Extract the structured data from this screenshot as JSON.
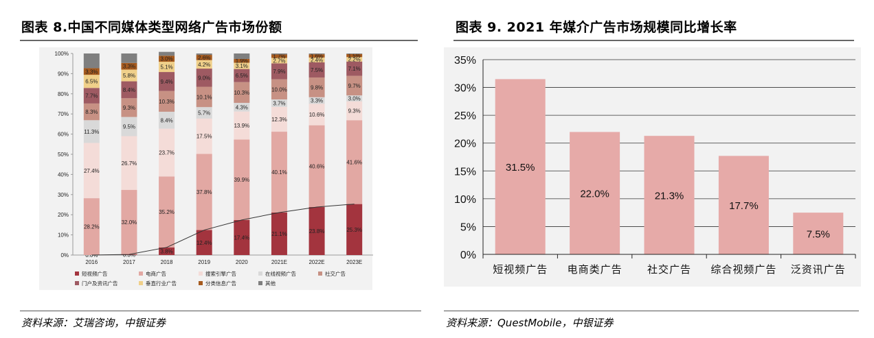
{
  "left": {
    "title": "图表 8.中国不同媒体类型网络广告市场份额",
    "source": "资料来源：艾瑞咨询，中银证券"
  },
  "right": {
    "title": "图表 9. 2021 年媒介广告市场规模同比增长率",
    "source": "资料来源：QuestMobile，中银证券"
  },
  "chart_data": [
    {
      "type": "bar",
      "stacked": true,
      "categories": [
        "2016",
        "2017",
        "2018",
        "2019",
        "2020",
        "2021E",
        "2022E",
        "2023E"
      ],
      "ylim": [
        0,
        100
      ],
      "yticks": [
        "0%",
        "10%",
        "20%",
        "30%",
        "40%",
        "50%",
        "60%",
        "70%",
        "80%",
        "90%",
        "100%"
      ],
      "series": [
        {
          "name": "短视频广告",
          "color": "#a3343e",
          "values": [
            0.0,
            0.3,
            3.8,
            12.4,
            17.4,
            21.1,
            23.8,
            25.3
          ],
          "labels": [
            "0.0%",
            "0.3%",
            "3.8%",
            "12.4%",
            "17.4%",
            "21.1%",
            "23.8%",
            "25.3%"
          ]
        },
        {
          "name": "电商广告",
          "color": "#e2a8a3",
          "values": [
            28.2,
            32.0,
            35.2,
            37.8,
            39.9,
            40.1,
            40.6,
            41.6
          ],
          "labels": [
            "28.2%",
            "32.0%",
            "35.2%",
            "37.8%",
            "39.9%",
            "40.1%",
            "40.6%",
            "41.6%"
          ]
        },
        {
          "name": "搜索引擎广告",
          "color": "#f4dcd8",
          "values": [
            27.4,
            26.7,
            23.7,
            17.5,
            13.9,
            12.3,
            10.6,
            9.3
          ],
          "labels": [
            "27.4%",
            "26.7%",
            "23.7%",
            "17.5%",
            "13.9%",
            "12.3%",
            "10.6%",
            "9.3%"
          ]
        },
        {
          "name": "在线视频广告",
          "color": "#d9d9d9",
          "values": [
            11.3,
            9.5,
            8.4,
            5.7,
            4.3,
            3.7,
            3.3,
            3.0
          ],
          "labels": [
            "11.3%",
            "9.5%",
            "8.4%",
            "5.7%",
            "4.3%",
            "3.7%",
            "3.3%",
            "3.0%"
          ]
        },
        {
          "name": "社交广告",
          "color": "#c79184",
          "values": [
            8.3,
            9.3,
            10.3,
            10.1,
            10.3,
            10.0,
            9.8,
            9.7
          ],
          "labels": [
            "8.3%",
            "9.3%",
            "10.3%",
            "10.1%",
            "10.3%",
            "10.0%",
            "9.8%",
            "9.7%"
          ]
        },
        {
          "name": "门户及资讯广告",
          "color": "#9e5a62",
          "values": [
            7.7,
            8.4,
            9.4,
            9.0,
            6.5,
            7.9,
            7.5,
            7.1
          ],
          "labels": [
            "7.7%",
            "8.4%",
            "9.4%",
            "9.0%",
            "6.5%",
            "7.9%",
            "7.5%",
            "7.1%"
          ]
        },
        {
          "name": "垂直行业广告",
          "color": "#f0d08a",
          "values": [
            6.5,
            5.8,
            5.1,
            4.2,
            3.1,
            2.7,
            2.4,
            2.2
          ],
          "labels": [
            "6.5%",
            "5.8%",
            "5.1%",
            "4.2%",
            "3.1%",
            "2.7%",
            "2.4%",
            "2.2%"
          ]
        },
        {
          "name": "分类信息广告",
          "color": "#a65a1e",
          "values": [
            3.3,
            3.3,
            3.0,
            2.6,
            1.9,
            1.7,
            1.6,
            1.5
          ],
          "labels": [
            "3.3%",
            "3.3%",
            "3.0%",
            "2.6%",
            "1.9%",
            "1.7%",
            "1.6%",
            "1.5%"
          ]
        },
        {
          "name": "其他",
          "color": "#7f7f7f",
          "values": [
            7.3,
            4.7,
            1.9,
            0.7,
            2.7,
            0.5,
            0.4,
            0.3
          ],
          "labels": [
            "",
            "",
            "",
            "",
            "",
            "",
            "",
            ""
          ]
        }
      ],
      "trend_line_series": "短视频广告",
      "legend_position": "bottom",
      "grid": false
    },
    {
      "type": "bar",
      "categories": [
        "短视频广告",
        "电商类广告",
        "社交广告",
        "综合视频广告",
        "泛资讯广告"
      ],
      "values": [
        31.5,
        22.0,
        21.3,
        17.7,
        7.5
      ],
      "labels": [
        "31.5%",
        "22.0%",
        "21.3%",
        "17.7%",
        "7.5%"
      ],
      "ylim": [
        0,
        35
      ],
      "yticks": [
        "0%",
        "5%",
        "10%",
        "15%",
        "20%",
        "25%",
        "30%",
        "35%"
      ],
      "color": "#e6aaa8",
      "grid": true
    }
  ]
}
